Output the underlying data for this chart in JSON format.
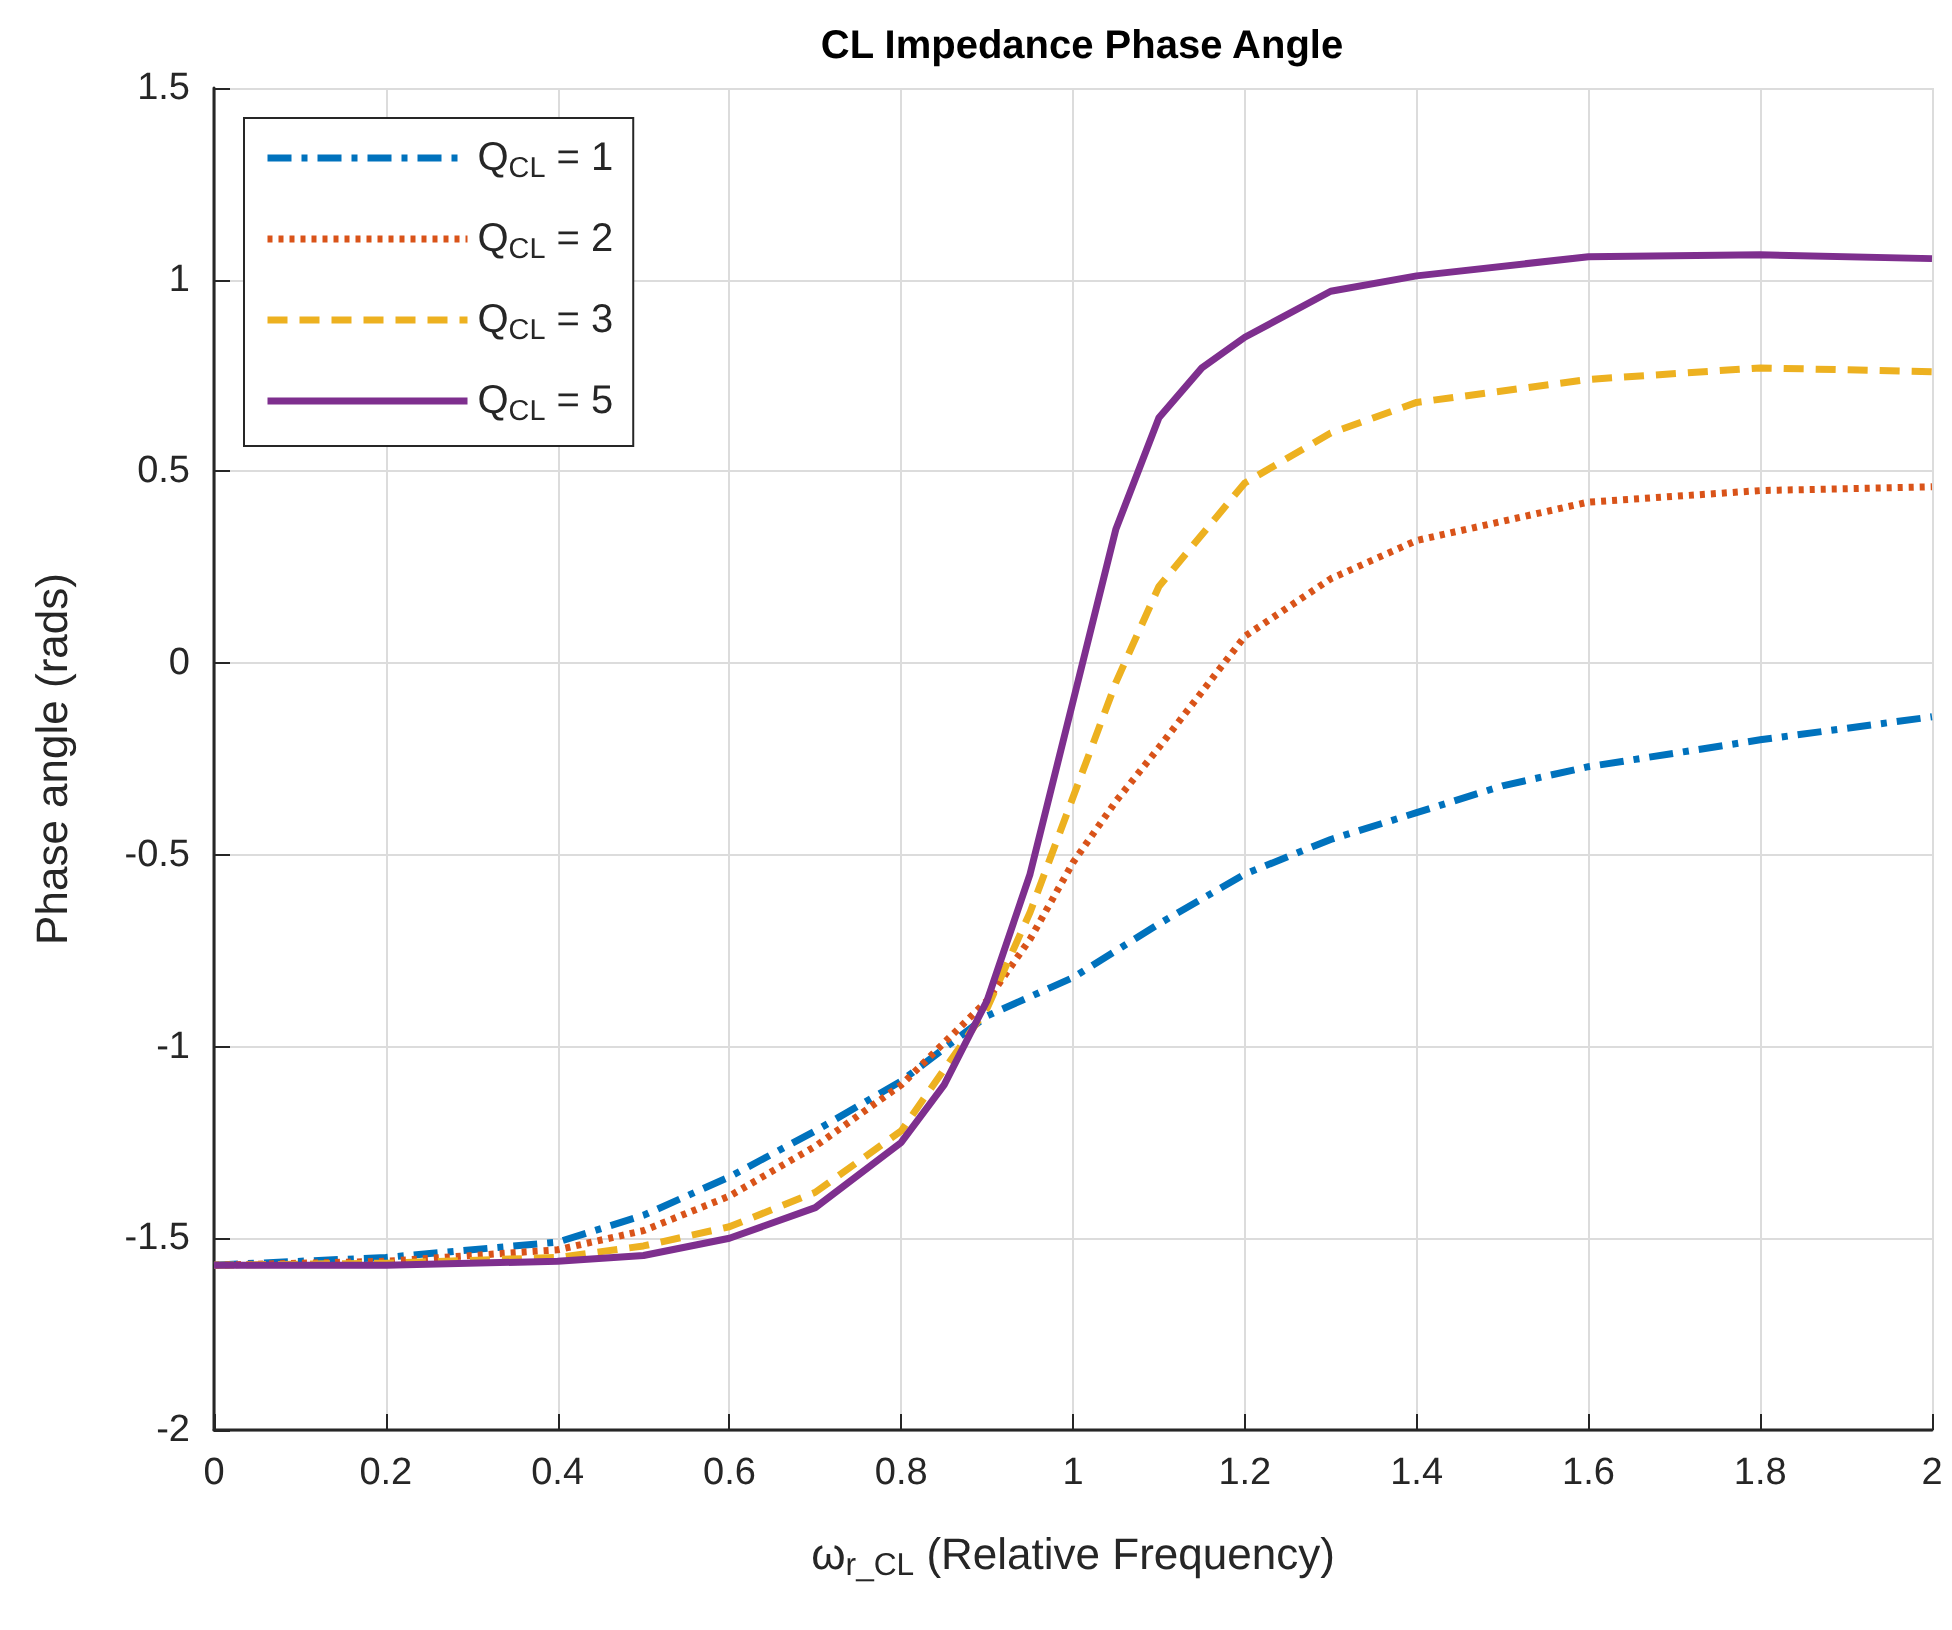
{
  "chart_data": {
    "type": "line",
    "title": "CL Impedance Phase Angle",
    "xlabel": "ω$_{r_CL}$ (Relative Frequency)",
    "ylabel": "Phase angle (rads)",
    "xlim": [
      0,
      2
    ],
    "xticks": [
      0,
      0.2,
      0.4,
      0.6,
      0.8,
      1,
      1.2,
      1.4,
      1.6,
      1.8,
      2
    ],
    "ylim": [
      -2,
      1.5
    ],
    "yticks": [
      -2,
      -1.5,
      -1,
      -0.5,
      0,
      0.5,
      1,
      1.5
    ],
    "grid": true,
    "legend": "top left",
    "marker": "none",
    "series": [
      {
        "name": "Q$_{CL}$ = 1",
        "color": "#0072bd",
        "line_style": "dashdot",
        "x": [
          0,
          0.2,
          0.4,
          0.5,
          0.6,
          0.7,
          0.8,
          0.9,
          1,
          1.1,
          1.2,
          1.3,
          1.4,
          1.5,
          1.6,
          1.8,
          2
        ],
        "values": [
          -1.57,
          -1.55,
          -1.51,
          -1.44,
          -1.34,
          -1.22,
          -1.09,
          -0.92,
          -0.82,
          -0.68,
          -0.55,
          -0.46,
          -0.39,
          -0.32,
          -0.27,
          -0.2,
          -0.14
        ]
      },
      {
        "name": "Q$_{CL}$ = 2",
        "color": "#d95319",
        "line_style": "dotted",
        "x": [
          0,
          0.2,
          0.4,
          0.5,
          0.6,
          0.7,
          0.8,
          0.9,
          0.95,
          1,
          1.05,
          1.1,
          1.2,
          1.3,
          1.4,
          1.6,
          1.8,
          2
        ],
        "values": [
          -1.57,
          -1.56,
          -1.53,
          -1.48,
          -1.39,
          -1.26,
          -1.1,
          -0.88,
          -0.72,
          -0.52,
          -0.36,
          -0.22,
          0.07,
          0.22,
          0.32,
          0.42,
          0.45,
          0.46
        ]
      },
      {
        "name": "Q$_{CL}$ = 3",
        "color": "#edb120",
        "line_style": "dashed",
        "x": [
          0,
          0.2,
          0.4,
          0.5,
          0.6,
          0.7,
          0.8,
          0.9,
          0.95,
          1,
          1.05,
          1.1,
          1.2,
          1.3,
          1.4,
          1.6,
          1.8,
          2
        ],
        "values": [
          -1.57,
          -1.565,
          -1.55,
          -1.52,
          -1.47,
          -1.38,
          -1.22,
          -0.9,
          -0.65,
          -0.35,
          -0.05,
          0.2,
          0.47,
          0.6,
          0.68,
          0.74,
          0.77,
          0.76
        ]
      },
      {
        "name": "Q$_{CL}$ = 5",
        "color": "#7e2f8e",
        "line_style": "solid",
        "x": [
          0,
          0.2,
          0.4,
          0.5,
          0.6,
          0.7,
          0.8,
          0.85,
          0.9,
          0.95,
          1,
          1.05,
          1.1,
          1.15,
          1.2,
          1.3,
          1.4,
          1.6,
          1.8,
          2
        ],
        "values": [
          -1.57,
          -1.57,
          -1.56,
          -1.545,
          -1.5,
          -1.42,
          -1.25,
          -1.1,
          -0.88,
          -0.55,
          -0.1,
          0.35,
          0.64,
          0.77,
          0.85,
          0.97,
          1.01,
          1.06,
          1.065,
          1.055
        ]
      }
    ]
  }
}
